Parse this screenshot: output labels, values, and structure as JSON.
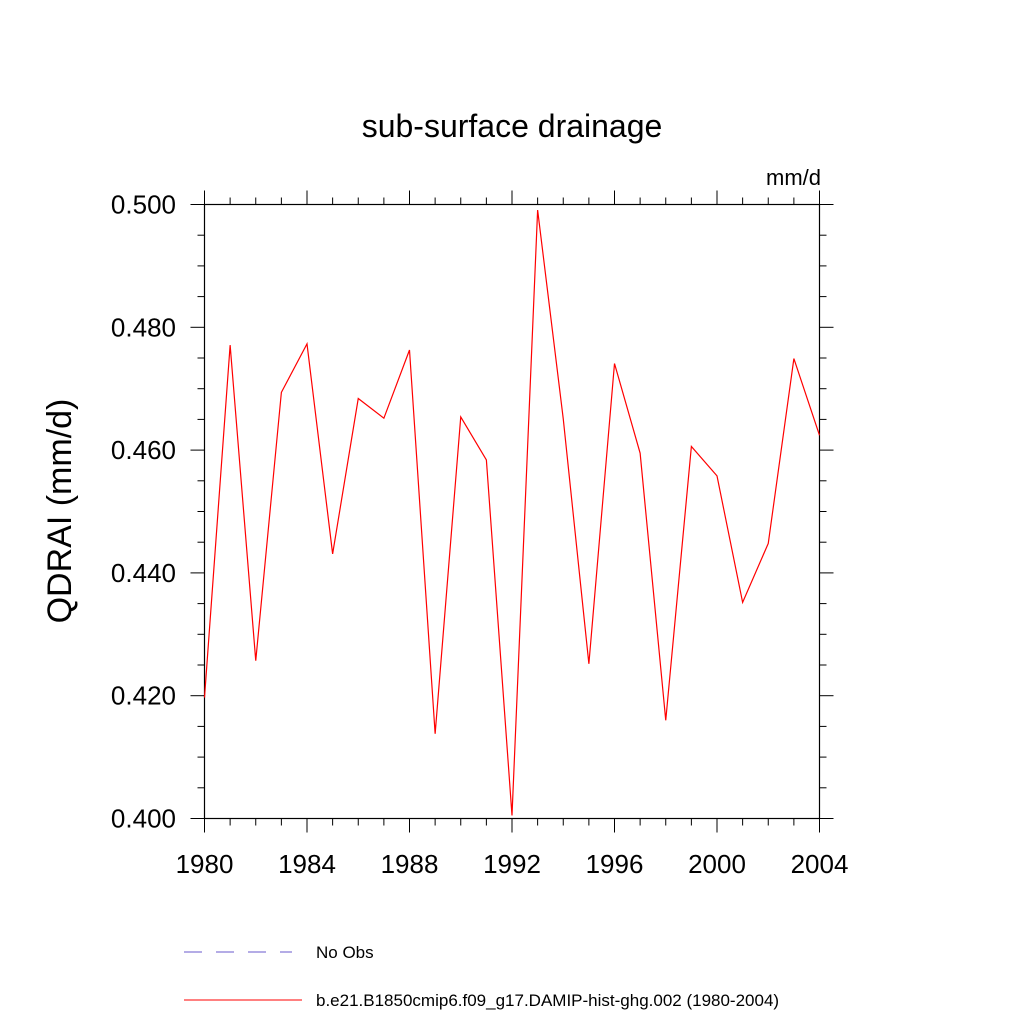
{
  "chart_data": {
    "type": "line",
    "title": "sub-surface drainage",
    "units": "mm/d",
    "xlabel": "",
    "ylabel": "QDRAI  (mm/d)",
    "xlim": [
      1980,
      2004
    ],
    "ylim": [
      0.4,
      0.5
    ],
    "x_ticks": [
      "1980",
      "1984",
      "1988",
      "1992",
      "1996",
      "2000",
      "2004"
    ],
    "y_ticks": [
      "0.400",
      "0.420",
      "0.440",
      "0.460",
      "0.480",
      "0.500"
    ],
    "x": [
      1980,
      1981,
      1982,
      1983,
      1984,
      1985,
      1986,
      1987,
      1988,
      1989,
      1990,
      1991,
      1992,
      1993,
      1994,
      1995,
      1996,
      1997,
      1998,
      1999,
      2000,
      2001,
      2002,
      2003,
      2004
    ],
    "series": [
      {
        "name": "b.e21.B1850cmip6.f09_g17.DAMIP-hist-ghg.002 (1980-2004)",
        "color": "#ff0000",
        "values": [
          0.4197,
          0.4771,
          0.4257,
          0.4694,
          0.4773,
          0.4431,
          0.4684,
          0.4652,
          0.4763,
          0.4138,
          0.4654,
          0.4584,
          0.4005,
          0.4991,
          0.4651,
          0.4252,
          0.4741,
          0.4595,
          0.416,
          0.4606,
          0.4558,
          0.4352,
          0.4448,
          0.4749,
          0.4624
        ]
      }
    ],
    "legend": [
      {
        "label": "No Obs",
        "color": "#6a5acd",
        "style": "dashed"
      },
      {
        "label": "b.e21.B1850cmip6.f09_g17.DAMIP-hist-ghg.002 (1980-2004)",
        "color": "#ff0000",
        "style": "solid"
      }
    ],
    "grid": false,
    "legend_position": "bottom"
  }
}
